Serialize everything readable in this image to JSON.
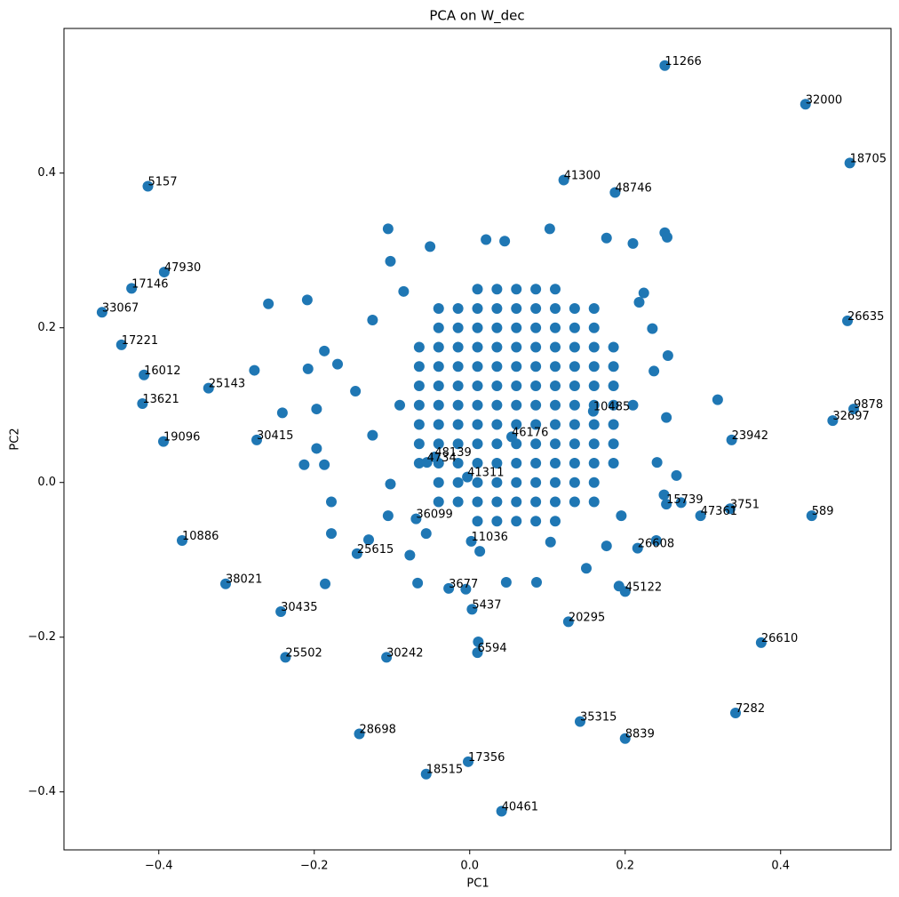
{
  "chart_data": {
    "type": "scatter",
    "title": "PCA on W_dec",
    "x_label": "PC1",
    "y_label": "PC2",
    "color": "#1f77b4",
    "xlim": [
      -0.522,
      0.542
    ],
    "ylim": [
      -0.475,
      0.587
    ],
    "xticks": [
      {
        "value": -0.4,
        "label": "−0.4"
      },
      {
        "value": -0.2,
        "label": "−0.2"
      },
      {
        "value": 0,
        "label": "0.0"
      },
      {
        "value": 0.2,
        "label": "0.2"
      },
      {
        "value": 0.4,
        "label": "0.4"
      }
    ],
    "yticks": [
      {
        "value": -0.4,
        "label": "−0.4"
      },
      {
        "value": -0.2,
        "label": "−0.2"
      },
      {
        "value": 0,
        "label": "0.0"
      },
      {
        "value": 0.2,
        "label": "0.2"
      },
      {
        "value": 0.4,
        "label": "0.4"
      }
    ],
    "points": {
      "x": [
        0.01,
        0.035,
        0.06,
        0.085,
        0.11,
        -0.04,
        -0.015,
        0.01,
        0.035,
        0.06,
        0.085,
        0.11,
        0.135,
        0.16,
        -0.04,
        -0.015,
        0.01,
        0.035,
        0.06,
        0.085,
        0.11,
        0.135,
        0.16,
        -0.065,
        -0.04,
        -0.015,
        0.01,
        0.035,
        0.06,
        0.085,
        0.11,
        0.135,
        0.16,
        0.185,
        -0.065,
        -0.04,
        -0.015,
        0.01,
        0.035,
        0.06,
        0.085,
        0.11,
        0.135,
        0.16,
        0.185,
        -0.065,
        -0.04,
        -0.015,
        0.01,
        0.035,
        0.06,
        0.085,
        0.11,
        0.135,
        0.16,
        0.185,
        -0.09,
        -0.065,
        -0.04,
        -0.015,
        0.01,
        0.035,
        0.06,
        0.085,
        0.11,
        0.135,
        0.16,
        0.185,
        0.21,
        -0.065,
        -0.04,
        -0.015,
        0.01,
        0.035,
        0.06,
        0.085,
        0.11,
        0.135,
        0.16,
        0.185,
        -0.065,
        -0.04,
        -0.015,
        0.01,
        0.035,
        0.06,
        0.085,
        0.11,
        0.135,
        0.16,
        0.185,
        -0.065,
        -0.04,
        -0.015,
        0.01,
        0.035,
        0.06,
        0.085,
        0.11,
        0.135,
        0.16,
        0.185,
        -0.04,
        -0.015,
        0.01,
        0.035,
        0.06,
        0.085,
        0.11,
        0.135,
        0.16,
        -0.04,
        -0.015,
        0.01,
        0.035,
        0.06,
        0.085,
        0.11,
        0.135,
        0.16,
        0.01,
        0.035,
        0.06,
        0.085,
        0.11,
        -0.105,
        -0.051,
        -0.102,
        -0.209,
        -0.259,
        -0.187,
        -0.277,
        -0.208,
        -0.241,
        -0.197,
        -0.213,
        -0.187,
        -0.197,
        -0.178,
        -0.105,
        -0.178,
        -0.186,
        -0.13,
        -0.077,
        -0.067,
        -0.005,
        0.047,
        0.086,
        0.15,
        0.192,
        0.011,
        0.176,
        0.24,
        0.272,
        0.255,
        0.237,
        0.319,
        0.266,
        0.25,
        0.251,
        0.254,
        0.176,
        0.21,
        0.103,
        0.021,
        0.045,
        0.224,
        0.235,
        0.218,
        -0.085,
        -0.125,
        -0.17,
        -0.147,
        -0.125,
        -0.102,
        -0.056,
        0.013,
        0.104,
        0.195,
        0.241,
        0.253
      ],
      "y": [
        -0.05,
        -0.05,
        -0.05,
        -0.05,
        -0.05,
        -0.025,
        -0.025,
        -0.025,
        -0.025,
        -0.025,
        -0.025,
        -0.025,
        -0.025,
        -0.025,
        0,
        0,
        0,
        0,
        0,
        0,
        0,
        0,
        0,
        0.025,
        0.025,
        0.025,
        0.025,
        0.025,
        0.025,
        0.025,
        0.025,
        0.025,
        0.025,
        0.025,
        0.05,
        0.05,
        0.05,
        0.05,
        0.05,
        0.05,
        0.05,
        0.05,
        0.05,
        0.05,
        0.05,
        0.075,
        0.075,
        0.075,
        0.075,
        0.075,
        0.075,
        0.075,
        0.075,
        0.075,
        0.075,
        0.075,
        0.1,
        0.1,
        0.1,
        0.1,
        0.1,
        0.1,
        0.1,
        0.1,
        0.1,
        0.1,
        0.1,
        0.1,
        0.1,
        0.125,
        0.125,
        0.125,
        0.125,
        0.125,
        0.125,
        0.125,
        0.125,
        0.125,
        0.125,
        0.125,
        0.15,
        0.15,
        0.15,
        0.15,
        0.15,
        0.15,
        0.15,
        0.15,
        0.15,
        0.15,
        0.15,
        0.175,
        0.175,
        0.175,
        0.175,
        0.175,
        0.175,
        0.175,
        0.175,
        0.175,
        0.175,
        0.175,
        0.2,
        0.2,
        0.2,
        0.2,
        0.2,
        0.2,
        0.2,
        0.2,
        0.2,
        0.225,
        0.225,
        0.225,
        0.225,
        0.225,
        0.225,
        0.225,
        0.225,
        0.225,
        0.25,
        0.25,
        0.25,
        0.25,
        0.25,
        0.328,
        0.305,
        0.286,
        0.236,
        0.231,
        0.17,
        0.145,
        0.147,
        0.09,
        0.095,
        0.023,
        0.023,
        0.044,
        -0.025,
        -0.043,
        -0.066,
        -0.131,
        -0.074,
        -0.094,
        -0.13,
        -0.138,
        -0.129,
        -0.129,
        -0.111,
        -0.134,
        -0.206,
        -0.082,
        -0.075,
        -0.026,
        0.164,
        0.144,
        0.107,
        0.009,
        -0.016,
        0.323,
        0.317,
        0.316,
        0.309,
        0.328,
        0.314,
        0.312,
        0.245,
        0.199,
        0.233,
        0.247,
        0.21,
        0.153,
        0.118,
        0.061,
        -0.002,
        -0.066,
        -0.089,
        -0.077,
        -0.043,
        0.026,
        0.084
      ]
    },
    "labeled": {
      "labels": [
        "11266",
        "32000",
        "18705",
        "5157",
        "41300",
        "48746",
        "47930",
        "17146",
        "33067",
        "26635",
        "17221",
        "16012",
        "25143",
        "13621",
        "9878",
        "32697",
        "10485",
        "19096",
        "30415",
        "23942",
        "46176",
        "48139",
        "4734",
        "41311",
        "15739",
        "3751",
        "47361",
        "589",
        "36099",
        "10886",
        "11036",
        "26608",
        "25615",
        "3677",
        "38021",
        "45122",
        "30435",
        "5437",
        "20295",
        "26610",
        "25502",
        "30242",
        "6594",
        "7282",
        "35315",
        "8839",
        "28698",
        "17356",
        "18515",
        "40461"
      ],
      "x": [
        0.251,
        0.432,
        0.489,
        -0.414,
        0.121,
        0.187,
        -0.393,
        -0.435,
        -0.473,
        0.486,
        -0.448,
        -0.419,
        -0.336,
        -0.421,
        0.494,
        0.467,
        0.159,
        -0.394,
        -0.274,
        0.337,
        0.054,
        -0.045,
        -0.055,
        -0.003,
        0.253,
        0.335,
        0.297,
        0.44,
        -0.069,
        -0.37,
        0.002,
        0.216,
        -0.145,
        -0.027,
        -0.314,
        0.2,
        -0.243,
        0.003,
        0.127,
        0.375,
        -0.237,
        -0.107,
        0.01,
        0.342,
        0.142,
        0.2,
        -0.142,
        -0.002,
        -0.056,
        0.041
      ],
      "y": [
        0.539,
        0.489,
        0.413,
        0.383,
        0.391,
        0.375,
        0.272,
        0.251,
        0.22,
        0.209,
        0.178,
        0.139,
        0.122,
        0.102,
        0.095,
        0.08,
        0.092,
        0.053,
        0.055,
        0.055,
        0.059,
        0.033,
        0.026,
        0.007,
        -0.028,
        -0.034,
        -0.043,
        -0.043,
        -0.047,
        -0.075,
        -0.076,
        -0.085,
        -0.092,
        -0.137,
        -0.131,
        -0.141,
        -0.167,
        -0.164,
        -0.18,
        -0.207,
        -0.226,
        -0.226,
        -0.22,
        -0.298,
        -0.309,
        -0.331,
        -0.325,
        -0.361,
        -0.377,
        -0.425
      ]
    }
  }
}
